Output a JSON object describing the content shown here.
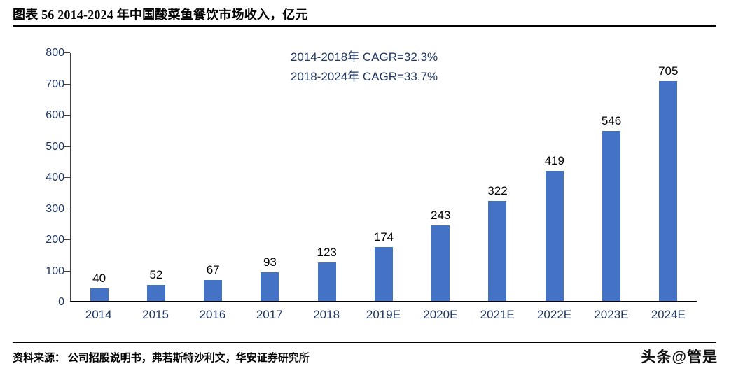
{
  "header": {
    "title": "图表 56 2014-2024 年中国酸菜鱼餐饮市场收入，亿元"
  },
  "chart_data": {
    "type": "bar",
    "title": "2014-2024 年中国酸菜鱼餐饮市场收入，亿元",
    "categories": [
      "2014",
      "2015",
      "2016",
      "2017",
      "2018",
      "2019E",
      "2020E",
      "2021E",
      "2022E",
      "2023E",
      "2024E"
    ],
    "values": [
      40,
      52,
      67,
      93,
      123,
      174,
      243,
      322,
      419,
      546,
      705
    ],
    "unit": "亿元",
    "xlabel": "",
    "ylabel": "",
    "ylim": [
      0,
      800
    ],
    "ytick_step": 100,
    "grid": false,
    "legend": "none",
    "annotations": [
      "2014-2018年  CAGR=32.3%",
      "2018-2024年  CAGR=33.7%"
    ],
    "bar_color": "#4472C4",
    "axis_text_color": "#1F3864",
    "label_color": "#000000"
  },
  "footer": {
    "source": "资料来源：  公司招股说明书，弗若斯特沙利文，华安证券研究所",
    "watermark": "头条@管是"
  }
}
